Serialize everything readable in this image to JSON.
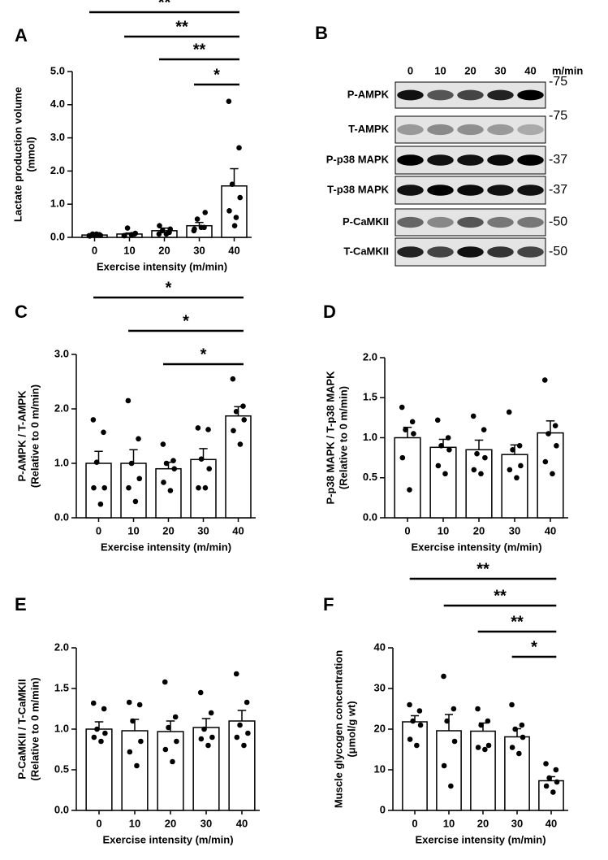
{
  "chart_data": [
    {
      "type": "bar",
      "panel": "A",
      "ylabel": [
        "Lactate production volume",
        "(mmol)"
      ],
      "xlabel": "Exercise intensity (m/min)",
      "categories": [
        "0",
        "10",
        "20",
        "30",
        "40"
      ],
      "values": [
        0.07,
        0.1,
        0.2,
        0.35,
        1.55
      ],
      "errors": [
        0.02,
        0.03,
        0.08,
        0.1,
        0.52
      ],
      "points": [
        [
          0.05,
          0.08,
          0.1,
          0.06,
          0.04,
          0.1,
          0.07
        ],
        [
          0.05,
          0.1,
          0.28,
          0.12,
          0.05,
          0.08
        ],
        [
          0.1,
          0.15,
          0.2,
          0.25,
          0.35,
          0.1
        ],
        [
          0.2,
          0.3,
          0.55,
          0.75,
          0.25,
          0.3
        ],
        [
          4.1,
          2.7,
          1.6,
          1.2,
          0.8,
          0.6,
          0.35
        ]
      ],
      "ylim": [
        0,
        5
      ],
      "yticks": [
        {
          "value": 0,
          "label": "0.0"
        },
        {
          "value": 1,
          "label": "1.0"
        },
        {
          "value": 2,
          "label": "2.0"
        },
        {
          "value": 3,
          "label": "3.0"
        },
        {
          "value": 4,
          "label": "4.0"
        },
        {
          "value": 5,
          "label": "5.0"
        }
      ],
      "significance": [
        {
          "from": "0",
          "to": "40",
          "label": "**"
        },
        {
          "from": "10",
          "to": "40",
          "label": "**"
        },
        {
          "from": "20",
          "to": "40",
          "label": "**"
        },
        {
          "from": "30",
          "to": "40",
          "label": "*"
        }
      ]
    },
    {
      "type": "bar",
      "panel": "C",
      "ylabel": [
        "P-AMPK / T-AMPK",
        "(Relative to 0 m/min)"
      ],
      "xlabel": "Exercise intensity (m/min)",
      "categories": [
        "0",
        "10",
        "20",
        "30",
        "40"
      ],
      "values": [
        1.0,
        1.0,
        0.9,
        1.07,
        1.87
      ],
      "errors": [
        0.22,
        0.25,
        0.12,
        0.2,
        0.17
      ],
      "points": [
        [
          1.8,
          1.57,
          1.02,
          0.55,
          0.55,
          0.25
        ],
        [
          2.15,
          1.45,
          1.0,
          0.72,
          0.55,
          0.3
        ],
        [
          1.35,
          1.05,
          1.0,
          0.9,
          0.65,
          0.5
        ],
        [
          1.65,
          1.62,
          1.08,
          0.9,
          0.55,
          0.55
        ],
        [
          2.55,
          2.05,
          1.95,
          1.8,
          1.6,
          1.35
        ]
      ],
      "ylim": [
        0,
        3
      ],
      "yticks": [
        {
          "value": 0,
          "label": "0.0"
        },
        {
          "value": 1,
          "label": "1.0"
        },
        {
          "value": 2,
          "label": "2.0"
        },
        {
          "value": 3,
          "label": "3.0"
        }
      ],
      "significance": [
        {
          "from": "0",
          "to": "40",
          "label": "*"
        },
        {
          "from": "10",
          "to": "40",
          "label": "*"
        },
        {
          "from": "20",
          "to": "40",
          "label": "*"
        }
      ]
    },
    {
      "type": "bar",
      "panel": "D",
      "ylabel": [
        "P-p38 MAPK / T-p38 MAPK",
        "(Relative to 0 m/min)"
      ],
      "xlabel": "Exercise intensity (m/min)",
      "categories": [
        "0",
        "10",
        "20",
        "30",
        "40"
      ],
      "values": [
        1.0,
        0.88,
        0.85,
        0.79,
        1.06
      ],
      "errors": [
        0.13,
        0.1,
        0.12,
        0.12,
        0.15
      ],
      "points": [
        [
          1.38,
          1.2,
          1.1,
          1.05,
          0.75,
          0.35
        ],
        [
          1.22,
          1.0,
          0.9,
          0.85,
          0.65,
          0.55
        ],
        [
          1.27,
          1.1,
          0.8,
          0.75,
          0.6,
          0.55
        ],
        [
          1.32,
          0.9,
          0.85,
          0.65,
          0.6,
          0.5
        ],
        [
          1.72,
          1.15,
          1.05,
          0.9,
          0.7,
          0.55
        ]
      ],
      "ylim": [
        0,
        2
      ],
      "yticks": [
        {
          "value": 0,
          "label": "0.0"
        },
        0.5,
        {
          "value": 1,
          "label": "1.0"
        },
        1.5,
        {
          "value": 2,
          "label": "2.0"
        }
      ],
      "significance": []
    },
    {
      "type": "bar",
      "panel": "E",
      "ylabel": [
        "P-CaMKII / T-CaMKII",
        "(Relative to 0 m/min)"
      ],
      "xlabel": "Exercise intensity (m/min)",
      "categories": [
        "0",
        "10",
        "20",
        "30",
        "40"
      ],
      "values": [
        1.0,
        0.98,
        0.97,
        1.02,
        1.1
      ],
      "errors": [
        0.09,
        0.14,
        0.13,
        0.11,
        0.13
      ],
      "points": [
        [
          1.32,
          1.25,
          1.0,
          0.95,
          0.9,
          0.85
        ],
        [
          1.33,
          1.3,
          1.1,
          0.85,
          0.72,
          0.55
        ],
        [
          1.58,
          1.15,
          1.02,
          0.85,
          0.75,
          0.6
        ],
        [
          1.45,
          1.2,
          1.0,
          0.9,
          0.88,
          0.8
        ],
        [
          1.68,
          1.33,
          1.05,
          0.95,
          0.9,
          0.8
        ]
      ],
      "ylim": [
        0,
        2
      ],
      "yticks": [
        {
          "value": 0,
          "label": "0.0"
        },
        0.5,
        {
          "value": 1,
          "label": "1.0"
        },
        1.5,
        {
          "value": 2,
          "label": "2.0"
        }
      ],
      "significance": []
    },
    {
      "type": "bar",
      "panel": "F",
      "ylabel": [
        "Muscle glycogen concentration",
        "(μmol/g wt)"
      ],
      "xlabel": "Exercise intensity (m/min)",
      "categories": [
        "0",
        "10",
        "20",
        "30",
        "40"
      ],
      "values": [
        21.8,
        19.6,
        19.5,
        18.1,
        7.3
      ],
      "errors": [
        1.5,
        4,
        2,
        2,
        1
      ],
      "points": [
        [
          26,
          24.5,
          22,
          21,
          17.5,
          16
        ],
        [
          33,
          25,
          22,
          17,
          11,
          6
        ],
        [
          25,
          22,
          21,
          16,
          15.5,
          15
        ],
        [
          26,
          21,
          20,
          18,
          15.5,
          14
        ],
        [
          11.5,
          10,
          8,
          7,
          6,
          4.5
        ]
      ],
      "ylim": [
        0,
        40
      ],
      "yticks": [
        0,
        10,
        20,
        30,
        40
      ],
      "significance": [
        {
          "from": "0",
          "to": "40",
          "label": "**"
        },
        {
          "from": "10",
          "to": "40",
          "label": "**"
        },
        {
          "from": "20",
          "to": "40",
          "label": "**"
        },
        {
          "from": "30",
          "to": "40",
          "label": "*"
        }
      ]
    }
  ],
  "blot": {
    "panel": "B",
    "lanes": [
      "0",
      "10",
      "20",
      "30",
      "40"
    ],
    "unit": "m/min",
    "rows": [
      {
        "protein": "P-AMPK",
        "marker": "-75"
      },
      {
        "protein": "T-AMPK",
        "marker": "-75"
      },
      {
        "protein": "P-p38 MAPK",
        "marker": "-37"
      },
      {
        "protein": "T-p38 MAPK",
        "marker": "-37"
      },
      {
        "protein": "P-CaMKII",
        "marker": "-50"
      },
      {
        "protein": "T-CaMKII",
        "marker": "-50"
      }
    ]
  }
}
